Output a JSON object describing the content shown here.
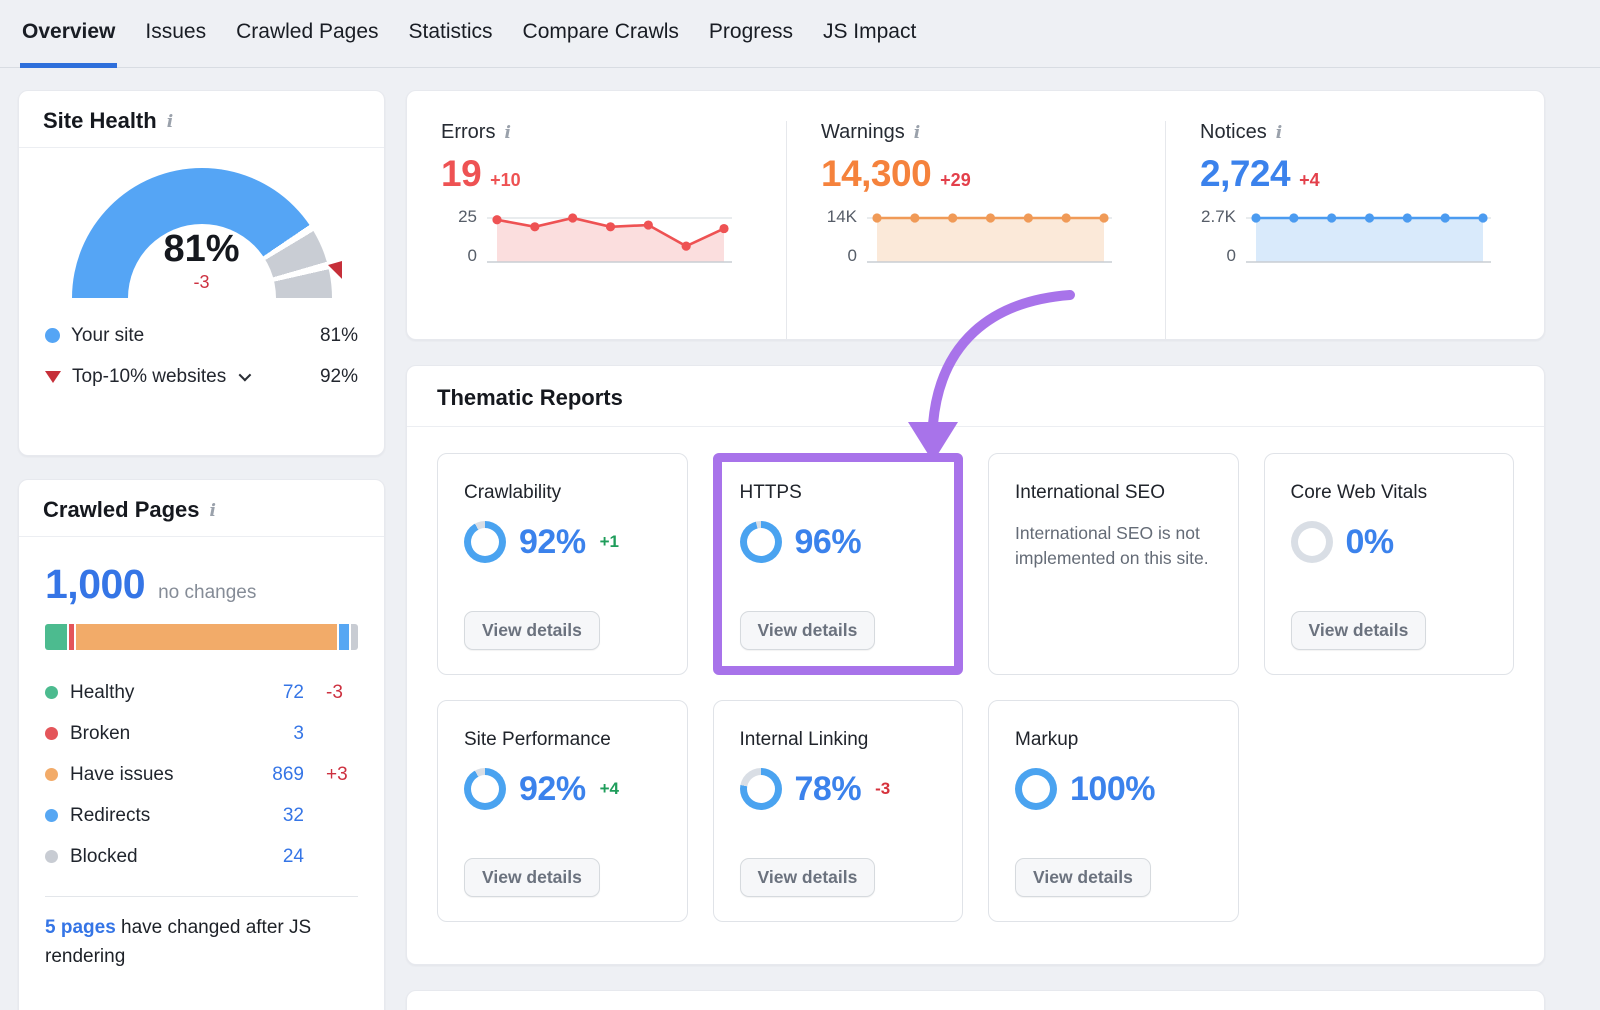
{
  "nav": {
    "tabs": [
      "Overview",
      "Issues",
      "Crawled Pages",
      "Statistics",
      "Compare Crawls",
      "Progress",
      "JS Impact"
    ],
    "active_index": 0
  },
  "site_health": {
    "title": "Site Health",
    "score_label": "81%",
    "change_label": "-3",
    "legend": [
      {
        "label": "Your site",
        "value": "81%"
      },
      {
        "label": "Top-10% websites",
        "value": "92%"
      }
    ]
  },
  "crawled_pages": {
    "title": "Crawled Pages",
    "total_label": "1,000",
    "status_label": "no changes",
    "legend": [
      {
        "label": "Healthy",
        "value": "72",
        "change": "-3"
      },
      {
        "label": "Broken",
        "value": "3",
        "change": ""
      },
      {
        "label": "Have issues",
        "value": "869",
        "change": "+3"
      },
      {
        "label": "Redirects",
        "value": "32",
        "change": ""
      },
      {
        "label": "Blocked",
        "value": "24",
        "change": ""
      }
    ],
    "footnote_link": "5 pages",
    "footnote_text": "have changed after JS rendering"
  },
  "top_metrics": {
    "errors": {
      "title": "Errors",
      "value": "19",
      "change": "+10",
      "ymax_label": "25",
      "ymin_label": "0"
    },
    "warnings": {
      "title": "Warnings",
      "value": "14,300",
      "change": "+29",
      "ymax_label": "14K",
      "ymin_label": "0"
    },
    "notices": {
      "title": "Notices",
      "value": "2,724",
      "change": "+4",
      "ymax_label": "2.7K",
      "ymin_label": "0"
    }
  },
  "thematic": {
    "title": "Thematic Reports",
    "view_details_label": "View details",
    "cards": [
      {
        "title": "Crawlability",
        "percent": 92,
        "percent_label": "92%",
        "change": "+1"
      },
      {
        "title": "HTTPS",
        "percent": 96,
        "percent_label": "96%",
        "change": "",
        "highlighted": true
      },
      {
        "title": "International SEO",
        "message": "International SEO is not implemented on this site."
      },
      {
        "title": "Core Web Vitals",
        "percent": 0,
        "percent_label": "0%",
        "change": ""
      },
      {
        "title": "Site Performance",
        "percent": 92,
        "percent_label": "92%",
        "change": "+4"
      },
      {
        "title": "Internal Linking",
        "percent": 78,
        "percent_label": "78%",
        "change": "-3"
      },
      {
        "title": "Markup",
        "percent": 100,
        "percent_label": "100%",
        "change": ""
      }
    ]
  },
  "chart_data": [
    {
      "type": "gauge",
      "title": "Site Health",
      "value": 81,
      "benchmark": 92,
      "range": [
        0,
        100
      ],
      "series": [
        {
          "name": "Your site",
          "value": 81
        },
        {
          "name": "Top-10% websites",
          "value": 92
        }
      ]
    },
    {
      "type": "area",
      "title": "Errors trend",
      "values": [
        24,
        20,
        25,
        20,
        21,
        9,
        19
      ],
      "ylim": [
        0,
        25
      ],
      "yticks": [
        "0",
        "25"
      ],
      "color": "#ee5253",
      "fill": "#fbdede"
    },
    {
      "type": "area",
      "title": "Warnings trend",
      "values": [
        14300,
        14300,
        14300,
        14300,
        14300,
        14300,
        14300
      ],
      "ylim": [
        0,
        14300
      ],
      "yticks": [
        "0",
        "14K"
      ],
      "color": "#f09a57",
      "fill": "#fbe9d9"
    },
    {
      "type": "area",
      "title": "Notices trend",
      "values": [
        2724,
        2724,
        2724,
        2724,
        2724,
        2724,
        2724
      ],
      "ylim": [
        0,
        2724
      ],
      "yticks": [
        "0",
        "2.7K"
      ],
      "color": "#4b9bf0",
      "fill": "#d9eafb"
    },
    {
      "type": "stacked-bar",
      "title": "Crawled pages breakdown",
      "total": 1000,
      "categories": [
        "Healthy",
        "Broken",
        "Have issues",
        "Redirects",
        "Blocked"
      ],
      "values": [
        72,
        3,
        869,
        32,
        24
      ],
      "colors": [
        "#4cbb8f",
        "#e4555a",
        "#f2ab69",
        "#57a7f3",
        "#c8ccd3"
      ]
    },
    {
      "type": "donut",
      "title": "Thematic report scores",
      "categories": [
        "Crawlability",
        "HTTPS",
        "International SEO",
        "Core Web Vitals",
        "Site Performance",
        "Internal Linking",
        "Markup"
      ],
      "values": [
        92,
        96,
        null,
        0,
        92,
        78,
        100
      ]
    }
  ],
  "colors": {
    "accent_blue": "#3b82ec",
    "ring_blue": "#4aa3f0",
    "ring_track": "#d9dee5",
    "gauge_blue": "#55a5f5",
    "gauge_track": "#c9cdd4",
    "red": "#d6323c",
    "green": "#1f9d5b",
    "orange": "#f5823c",
    "purple": "#a873ea"
  }
}
